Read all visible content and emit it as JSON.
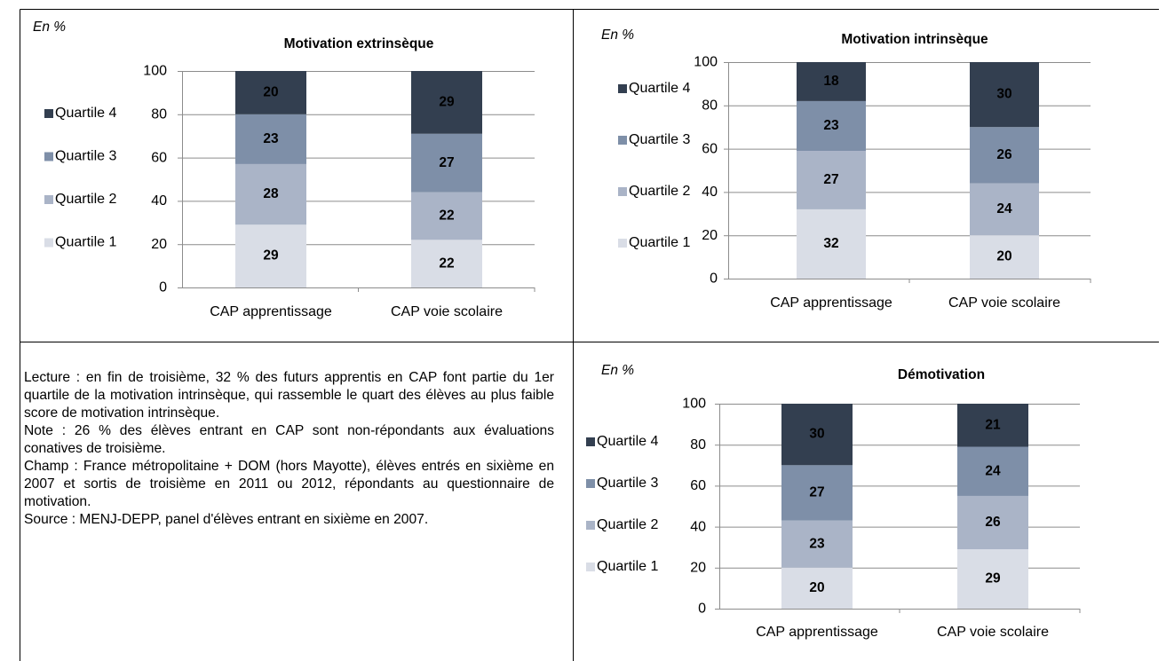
{
  "chart_data": [
    {
      "type": "bar",
      "stacked": true,
      "unit": "En %",
      "title": "Motivation extrinsèque",
      "categories": [
        "CAP apprentissage",
        "CAP voie scolaire"
      ],
      "series": [
        {
          "name": "Quartile 1",
          "color": "#d9dde6",
          "values": [
            29,
            22
          ]
        },
        {
          "name": "Quartile 2",
          "color": "#aab4c7",
          "values": [
            28,
            22
          ]
        },
        {
          "name": "Quartile 3",
          "color": "#7e8fa8",
          "values": [
            23,
            27
          ]
        },
        {
          "name": "Quartile 4",
          "color": "#333f50",
          "values": [
            20,
            29
          ]
        }
      ],
      "ylim": [
        0,
        100
      ],
      "yticks": [
        0,
        20,
        40,
        60,
        80,
        100
      ],
      "grid": true,
      "legend": "left"
    },
    {
      "type": "bar",
      "stacked": true,
      "unit": "En %",
      "title": "Motivation intrinsèque",
      "categories": [
        "CAP apprentissage",
        "CAP voie scolaire"
      ],
      "series": [
        {
          "name": "Quartile 1",
          "color": "#d9dde6",
          "values": [
            32,
            20
          ]
        },
        {
          "name": "Quartile 2",
          "color": "#aab4c7",
          "values": [
            27,
            24
          ]
        },
        {
          "name": "Quartile 3",
          "color": "#7e8fa8",
          "values": [
            23,
            26
          ]
        },
        {
          "name": "Quartile 4",
          "color": "#333f50",
          "values": [
            18,
            30
          ]
        }
      ],
      "ylim": [
        0,
        100
      ],
      "yticks": [
        0,
        20,
        40,
        60,
        80,
        100
      ],
      "grid": true,
      "legend": "left"
    },
    {
      "type": "bar",
      "stacked": true,
      "unit": "En %",
      "title": "Démotivation",
      "categories": [
        "CAP apprentissage",
        "CAP voie scolaire"
      ],
      "series": [
        {
          "name": "Quartile 1",
          "color": "#d9dde6",
          "values": [
            20,
            29
          ]
        },
        {
          "name": "Quartile 2",
          "color": "#aab4c7",
          "values": [
            23,
            26
          ]
        },
        {
          "name": "Quartile 3",
          "color": "#7e8fa8",
          "values": [
            27,
            24
          ]
        },
        {
          "name": "Quartile 4",
          "color": "#333f50",
          "values": [
            30,
            21
          ]
        }
      ],
      "ylim": [
        0,
        100
      ],
      "yticks": [
        0,
        20,
        40,
        60,
        80,
        100
      ],
      "grid": true,
      "legend": "left"
    }
  ],
  "notes": [
    "Lecture : en fin de troisième, 32 % des futurs apprentis en CAP font partie du 1er quartile de la motivation intrinsèque, qui rassemble le quart des élèves au plus faible score de motivation intrinsèque.",
    "Note : 26 % des élèves entrant en CAP sont non-répondants aux évaluations conatives de troisième.",
    "Champ : France métropolitaine + DOM (hors Mayotte), élèves entrés en sixième en 2007 et sortis de troisième en 2011 ou 2012, répondants au questionnaire de motivation.",
    "Source : MENJ-DEPP, panel d'élèves entrant en sixième en 2007."
  ]
}
